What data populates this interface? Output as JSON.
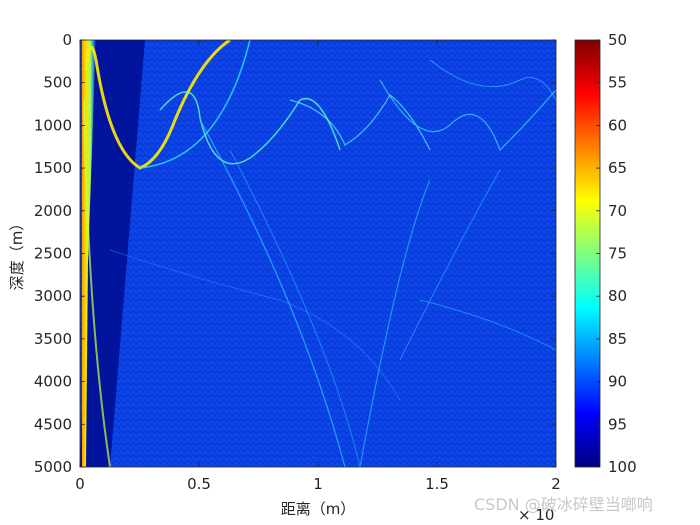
{
  "chart_data": {
    "type": "heatmap",
    "xlabel": "距离（m）",
    "ylabel": "深度（m）",
    "x_exponent_label": "× 10",
    "xlim": [
      0,
      2
    ],
    "ylim": [
      0,
      5000
    ],
    "y_reversed": true,
    "x_ticks": [
      "0",
      "0.5",
      "1",
      "1.5",
      "2"
    ],
    "x_tick_values": [
      0,
      0.5,
      1,
      1.5,
      2
    ],
    "y_ticks": [
      "0",
      "500",
      "1000",
      "1500",
      "2000",
      "2500",
      "3000",
      "3500",
      "4000",
      "4500",
      "5000"
    ],
    "y_tick_values": [
      0,
      500,
      1000,
      1500,
      2000,
      2500,
      3000,
      3500,
      4000,
      4500,
      5000
    ],
    "colorbar": {
      "colormap": "jet (reversed)",
      "range": [
        50,
        100
      ],
      "ticks": [
        "50",
        "55",
        "60",
        "65",
        "70",
        "75",
        "80",
        "85",
        "90",
        "95",
        "100"
      ],
      "tick_values": [
        50,
        55,
        60,
        65,
        70,
        75,
        80,
        85,
        90,
        95,
        100
      ]
    },
    "grid": false
  },
  "watermark": "CSDN @破冰碎壁当啷响"
}
